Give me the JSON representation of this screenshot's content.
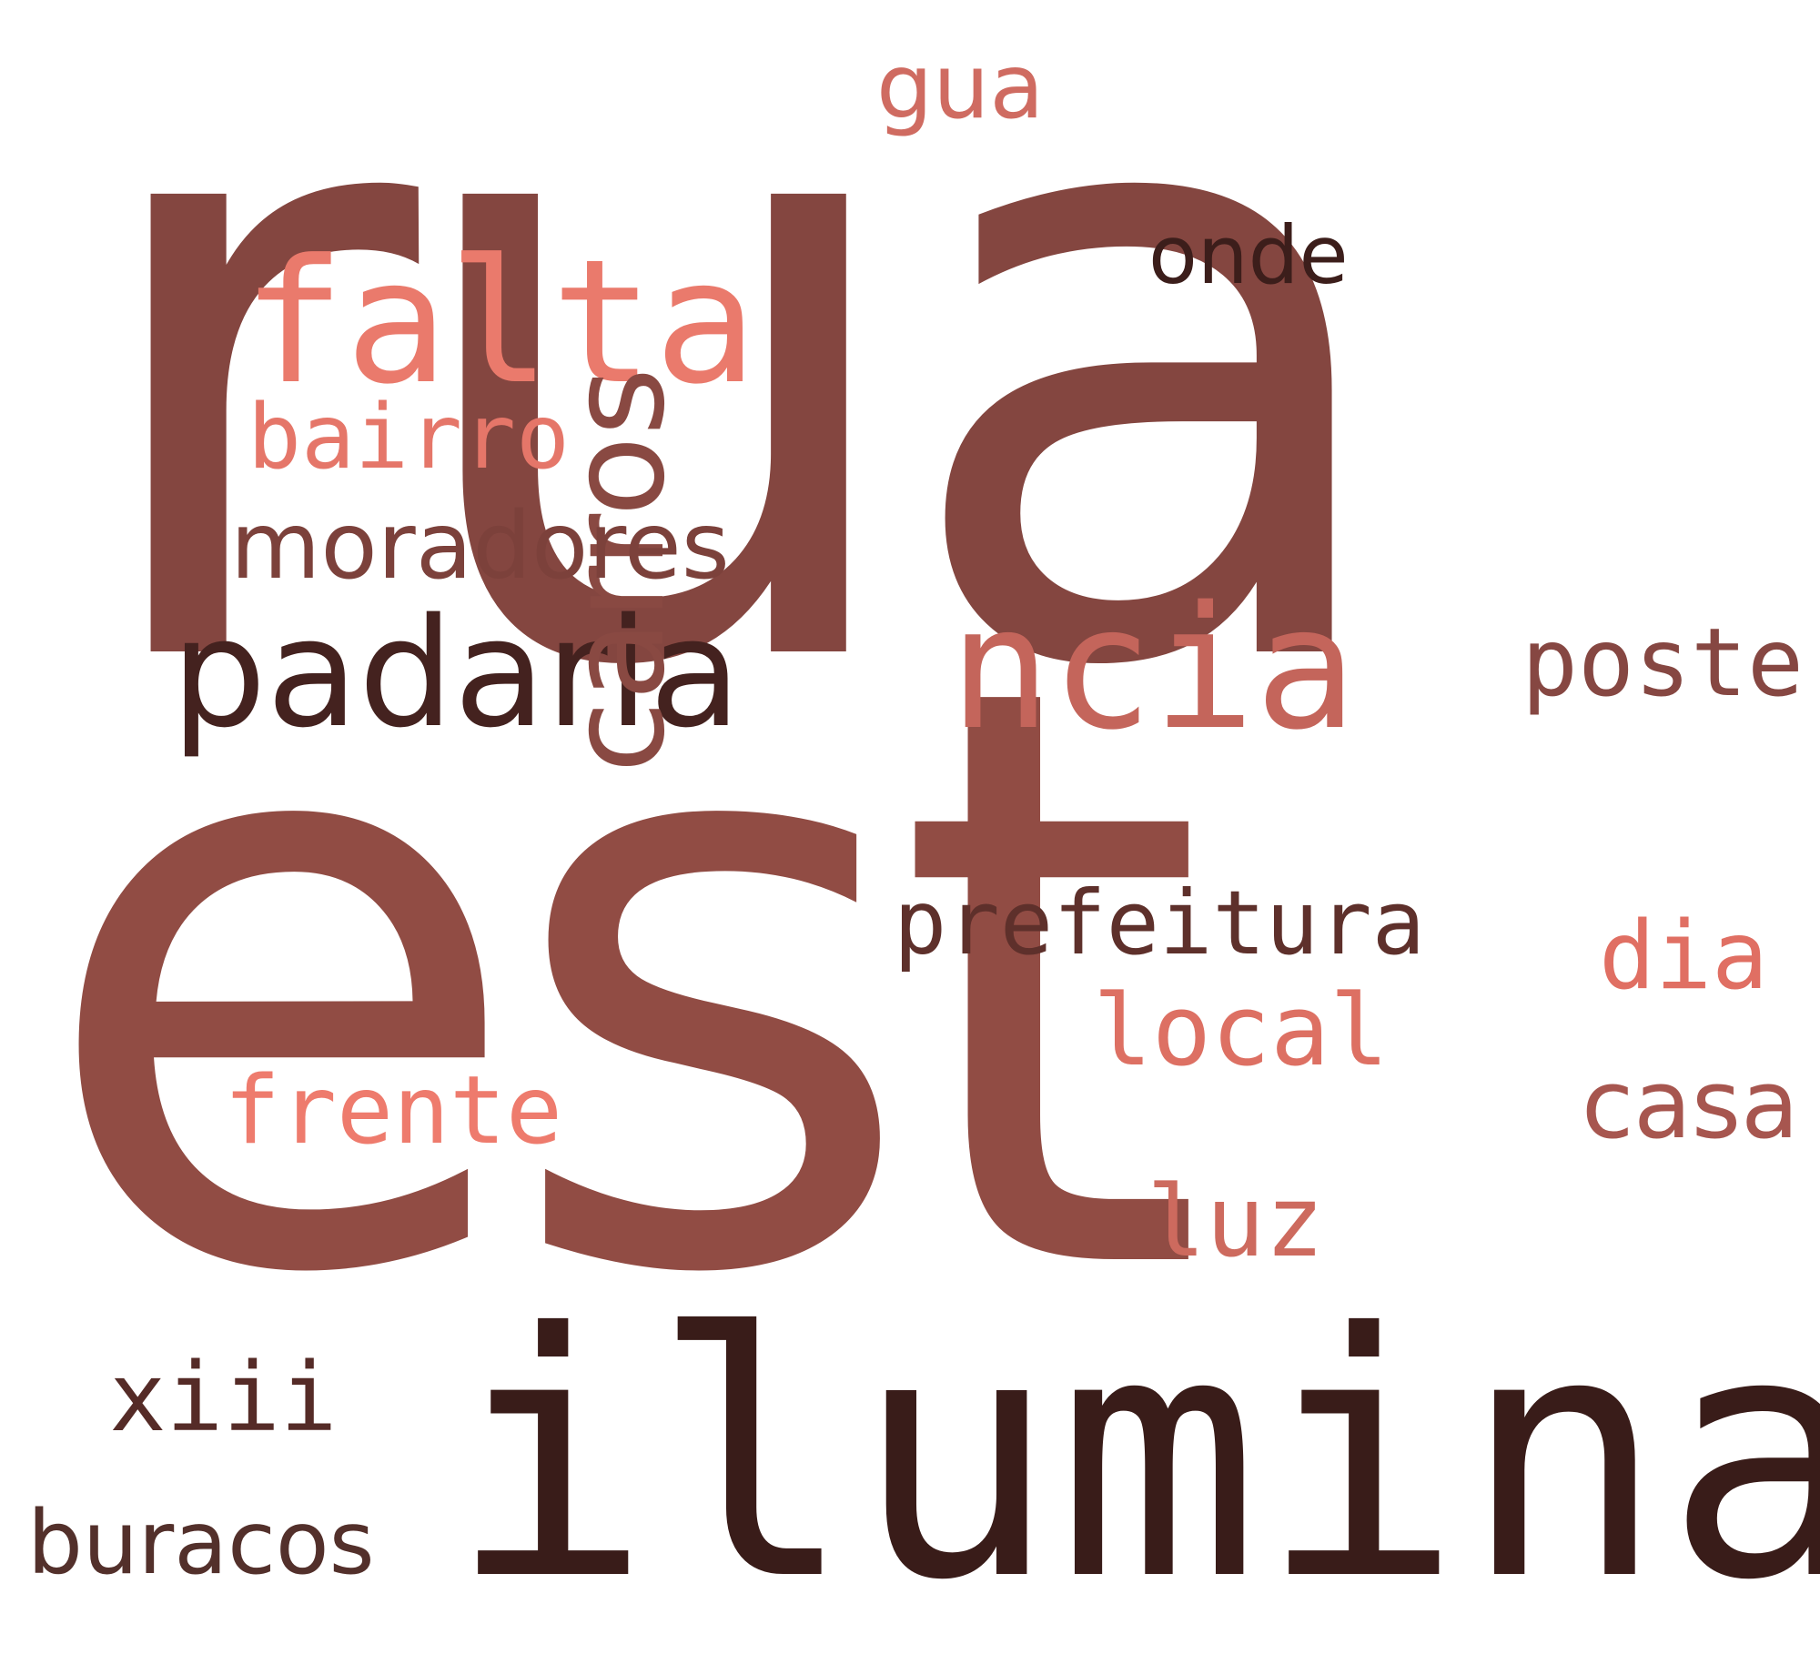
{
  "words": {
    "rua": {
      "text": "rua",
      "color": "#844640"
    },
    "est": {
      "text": "est",
      "color": "#914c44"
    },
    "ilumina": {
      "text": "ilumina",
      "color": "#391c19"
    },
    "falta": {
      "text": "falta",
      "color": "#ea7a6c"
    },
    "padaria": {
      "text": "padaria",
      "color": "#44221f"
    },
    "ncia": {
      "text": "ncia",
      "color": "#c4655b"
    },
    "carros": {
      "text": "carros",
      "color": "#894942"
    },
    "bairro": {
      "text": "bairro",
      "color": "#e57669"
    },
    "moradores": {
      "text": "moradores",
      "color": "#7c413b"
    },
    "prefeitura": {
      "text": "prefeitura",
      "color": "#5e302b"
    },
    "local": {
      "text": "local",
      "color": "#dd7063"
    },
    "poste": {
      "text": "poste",
      "color": "#864742"
    },
    "dia": {
      "text": "dia",
      "color": "#e06f63"
    },
    "casa": {
      "text": "casa",
      "color": "#a7564f"
    },
    "onde": {
      "text": "onde",
      "color": "#3c1e1b"
    },
    "gua": {
      "text": "gua",
      "color": "#cf6b61"
    },
    "frente": {
      "text": "frente",
      "color": "#ee7b6d"
    },
    "luz": {
      "text": "luz",
      "color": "#cd6a5e"
    },
    "xiii": {
      "text": "xiii",
      "color": "#552b27"
    },
    "buracos": {
      "text": "buracos",
      "color": "#53302b"
    }
  }
}
